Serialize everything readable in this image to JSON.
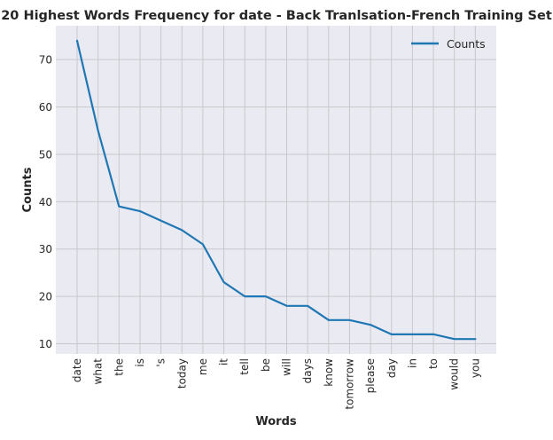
{
  "chart_data": {
    "type": "line",
    "title": "20 Highest Words Frequency for date - Back Tranlsation-French Training Set",
    "xlabel": "Words",
    "ylabel": "Counts",
    "categories": [
      "date",
      "what",
      "the",
      "is",
      "'s",
      "today",
      "me",
      "it",
      "tell",
      "be",
      "will",
      "days",
      "know",
      "tomorrow",
      "please",
      "day",
      "in",
      "to",
      "would",
      "you"
    ],
    "series": [
      {
        "name": "Counts",
        "values": [
          74,
          55,
          39,
          38,
          36,
          34,
          31,
          23,
          20,
          20,
          18,
          18,
          15,
          15,
          14,
          12,
          12,
          12,
          11,
          11
        ],
        "color": "#1f77b4"
      }
    ],
    "yticks": [
      10,
      20,
      30,
      40,
      50,
      60,
      70
    ],
    "ylim": [
      7.85,
      77.15
    ],
    "grid": true,
    "legend": "top-right"
  }
}
